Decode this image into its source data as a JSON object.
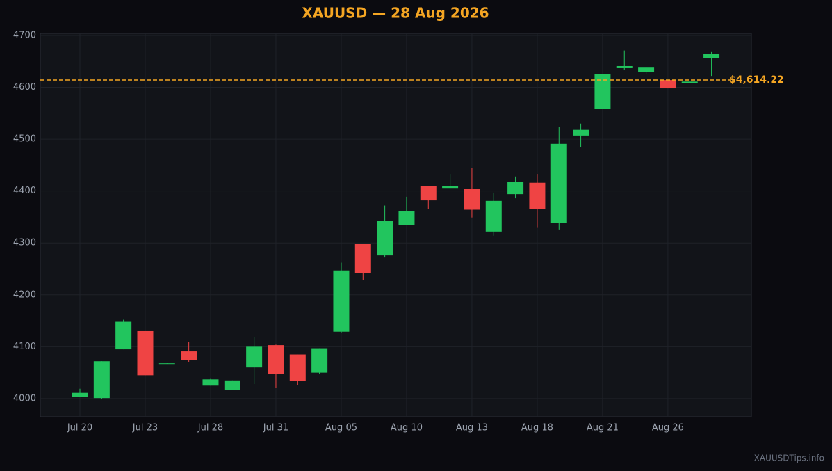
{
  "chart_data": {
    "type": "candlestick",
    "title": "XAUUSD — 28 Aug 2026",
    "categories": [
      "Jul 20",
      null,
      null,
      "Jul 23",
      null,
      null,
      "Jul 28",
      null,
      null,
      "Jul 31",
      null,
      null,
      "Aug 05",
      null,
      null,
      "Aug 10",
      null,
      null,
      "Aug 13",
      null,
      null,
      "Aug 18",
      null,
      null,
      "Aug 21",
      null,
      null,
      "Aug 26",
      null,
      null
    ],
    "open": [
      4003,
      4001,
      4095,
      4130,
      4067,
      4091,
      4025,
      4017,
      4060,
      4103,
      4085,
      4050,
      4129,
      4298,
      4276,
      4335,
      4409,
      4406,
      4404,
      4322,
      4394,
      4416,
      4339,
      4507,
      4559,
      4637,
      4630,
      4614,
      4608,
      4656
    ],
    "high": [
      4019,
      4072,
      4152,
      4130,
      4068,
      4109,
      4038,
      4035,
      4118,
      4104,
      4085,
      4097,
      4262,
      4298,
      4372,
      4389,
      4409,
      4433,
      4445,
      4397,
      4428,
      4433,
      4524,
      4530,
      4625,
      4671,
      4638,
      4614,
      4611,
      4668
    ],
    "low": [
      4003,
      3999,
      4095,
      4045,
      4067,
      4071,
      4025,
      4016,
      4028,
      4021,
      4026,
      4048,
      4127,
      4228,
      4272,
      4335,
      4365,
      4406,
      4349,
      4314,
      4386,
      4329,
      4326,
      4485,
      4559,
      4634,
      4626,
      4598,
      4608,
      4622
    ],
    "close": [
      4011,
      4072,
      4148,
      4045,
      4068,
      4074,
      4037,
      4035,
      4100,
      4048,
      4034,
      4097,
      4247,
      4242,
      4342,
      4362,
      4382,
      4410,
      4364,
      4381,
      4418,
      4366,
      4491,
      4518,
      4625,
      4641,
      4638,
      4598,
      4611,
      4665
    ],
    "up_color": "#22c55e",
    "down_color": "#ef4444",
    "ylim": [
      3965,
      4704
    ],
    "yticks": [
      4000,
      4100,
      4200,
      4300,
      4400,
      4500,
      4600,
      4700
    ],
    "grid": true,
    "price_line": {
      "value": 4614.22,
      "label": "$4,614.22",
      "color": "#f5a623"
    },
    "watermark": "XAUUSDTips.info"
  }
}
